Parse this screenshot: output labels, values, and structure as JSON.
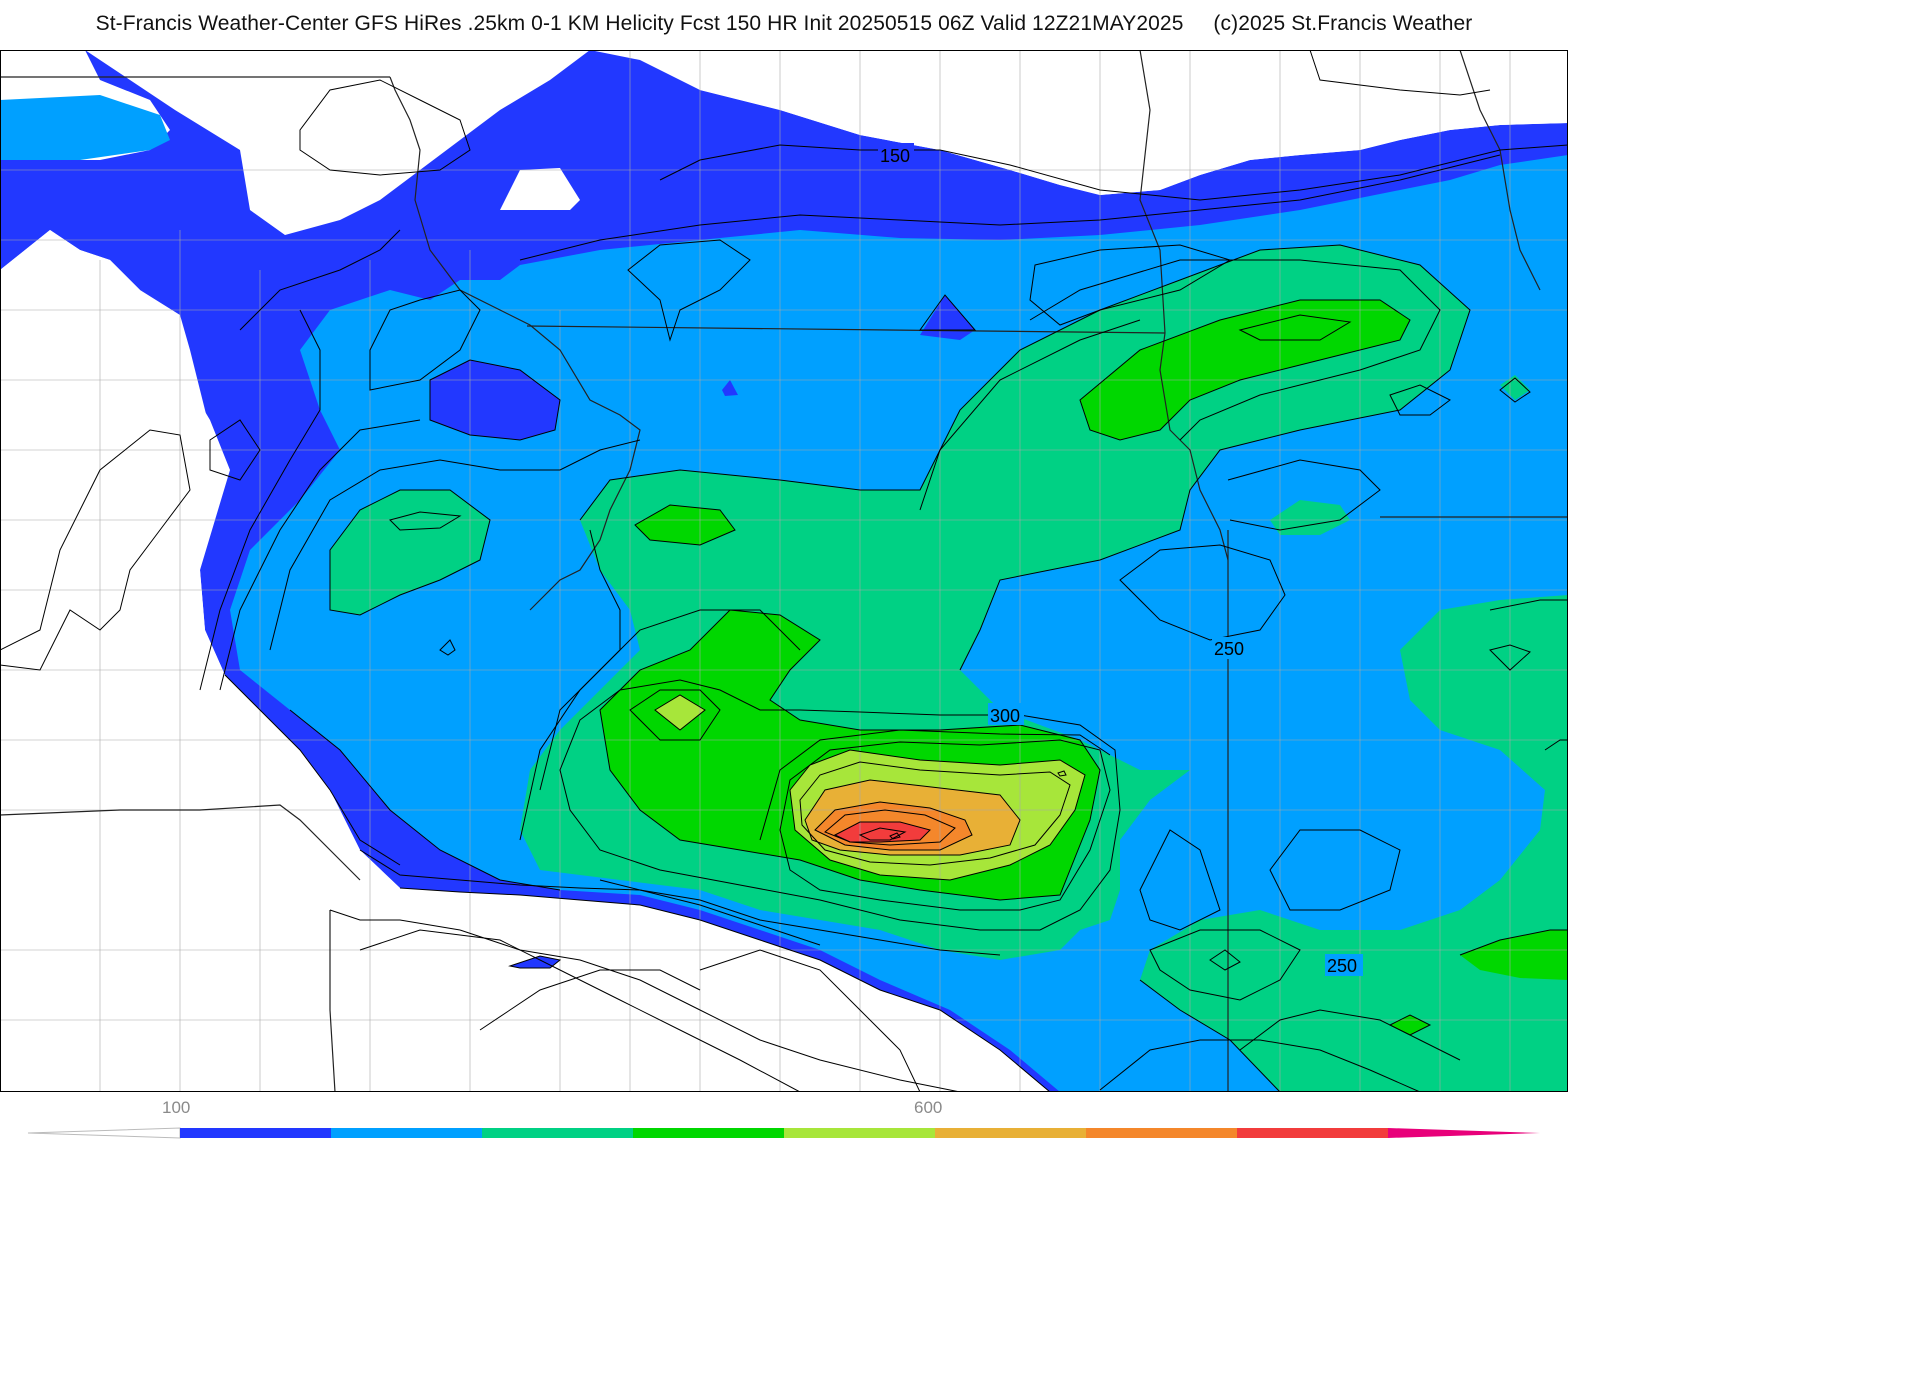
{
  "title": {
    "main": "St-Francis Weather-Center GFS HiRes .25km 0-1 KM Helicity Fcst 150 HR Init 20250515 06Z  Valid 12Z21MAY2025",
    "copyright": "(c)2025 St.Francis Weather"
  },
  "contour_labels": [
    "150",
    "300",
    "250",
    "250"
  ],
  "legend": {
    "labels": [
      "100",
      "600"
    ],
    "colors": [
      "#2238ff",
      "#00a0ff",
      "#00d184",
      "#00d700",
      "#a7e63a",
      "#e8b036",
      "#f4872b",
      "#f23c3c",
      "#e8007a"
    ]
  },
  "colors": {
    "band_150": "#2238ff",
    "band_200": "#00a0ff",
    "band_250": "#00d184",
    "band_300": "#00d700",
    "band_350": "#a7e63a",
    "band_400": "#e8b036",
    "band_450": "#f4872b",
    "band_500": "#f23c3c"
  }
}
